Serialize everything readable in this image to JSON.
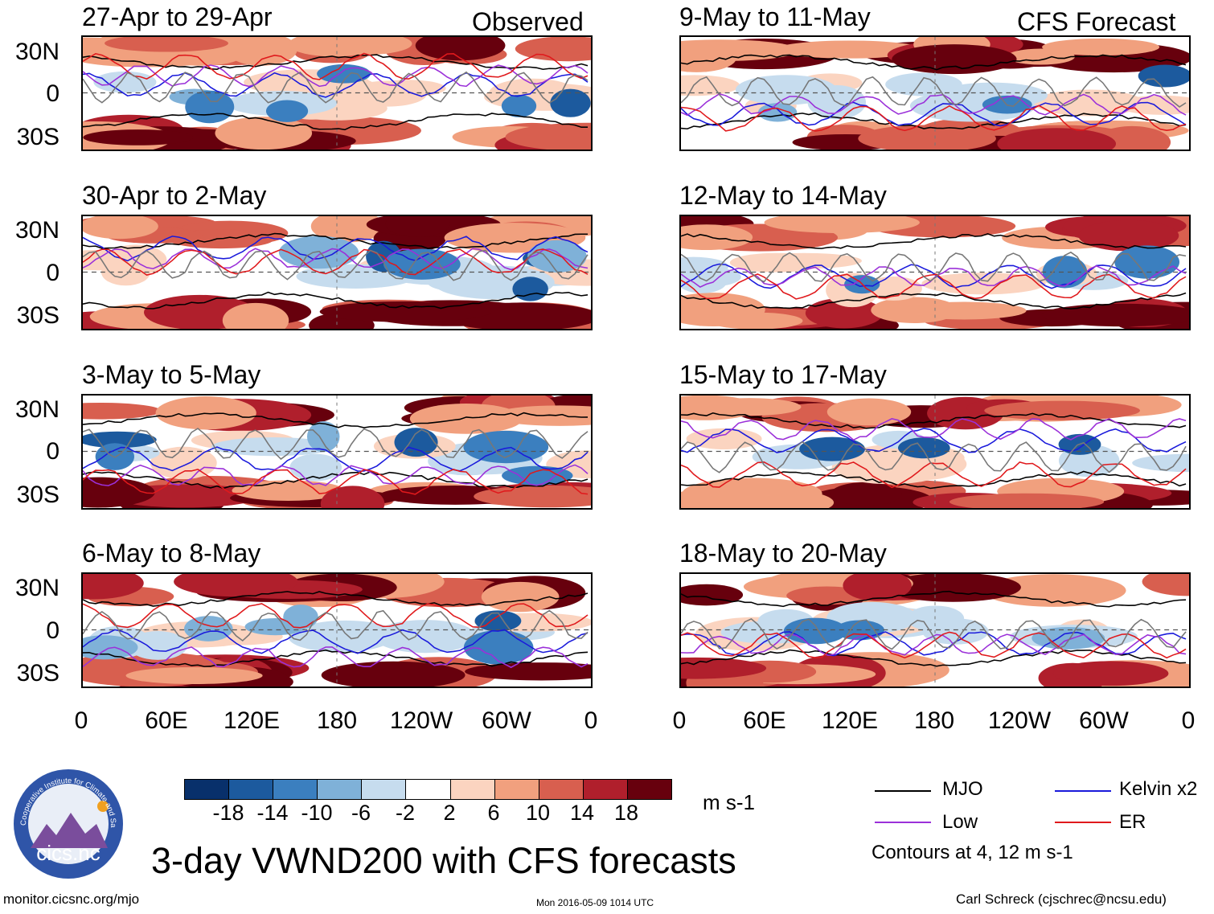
{
  "header": {
    "observed_label": "Observed",
    "forecast_label": "CFS Forecast"
  },
  "panels_left": [
    {
      "title": "27-Apr to 29-Apr"
    },
    {
      "title": "30-Apr to 2-May"
    },
    {
      "title": "3-May to 5-May"
    },
    {
      "title": "6-May to 8-May"
    }
  ],
  "panels_right": [
    {
      "title": "9-May to 11-May"
    },
    {
      "title": "12-May to 14-May"
    },
    {
      "title": "15-May to 17-May"
    },
    {
      "title": "18-May to 20-May"
    }
  ],
  "lat_labels": [
    "30N",
    "0",
    "30S"
  ],
  "lon_labels": [
    "0",
    "60E",
    "120E",
    "180",
    "120W",
    "60W",
    "0"
  ],
  "colorbar": {
    "ticks": [
      "-18",
      "-14",
      "-10",
      "-6",
      "-2",
      "2",
      "6",
      "10",
      "14",
      "18"
    ],
    "colors": [
      "#08306b",
      "#1c5a9e",
      "#3b7fbf",
      "#7fb1d8",
      "#c6dcee",
      "#ffffff",
      "#fbd4c0",
      "#f1a07e",
      "#d85f4f",
      "#b01f2c",
      "#67000d"
    ],
    "units": "m s-1"
  },
  "legend": {
    "mjo": "MJO",
    "kelvin": "Kelvin x2",
    "low": "Low",
    "er": "ER",
    "contours_note": "Contours at 4, 12 m s-1",
    "colors": {
      "mjo": "#000000",
      "kelvin": "#1a1adb",
      "low": "#9b30d9",
      "er": "#e0191c"
    }
  },
  "logo": {
    "text": "cics.nc",
    "ring_text": "Cooperative Institute for Climate and Satellites"
  },
  "title": "3-day VWND200 with CFS forecasts",
  "footer": {
    "url": "monitor.cicsnc.org/mjo",
    "timestamp": "Mon 2016-05-09 1014 UTC",
    "author": "Carl Schreck (cjschrec@ncsu.edu)"
  }
}
